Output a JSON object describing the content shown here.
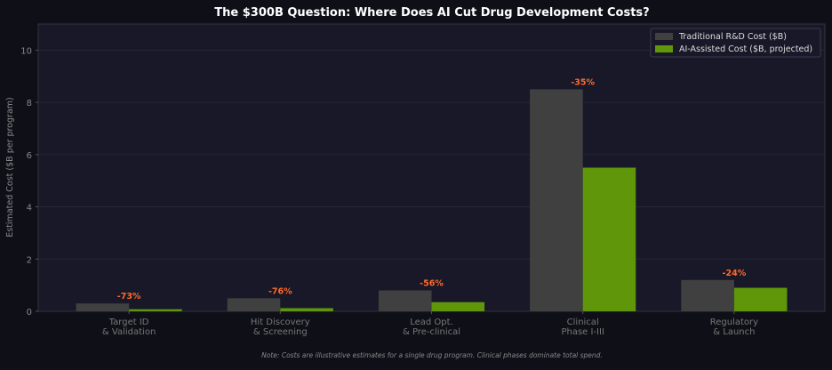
{
  "chart_data": {
    "type": "bar",
    "title": "The $300B Question: Where Does AI Cut Drug Development Costs?",
    "xlabel": "",
    "ylabel": "Estimated Cost ($B per program)",
    "ylim": [
      0,
      11
    ],
    "yticks": [
      0,
      2,
      4,
      6,
      8,
      10
    ],
    "grid": true,
    "legend_position": "top-right",
    "categories": [
      [
        "Target ID",
        "& Validation"
      ],
      [
        "Hit Discovery",
        "& Screening"
      ],
      [
        "Lead Opt.",
        "& Pre-clinical"
      ],
      [
        "Clinical",
        "Phase I-III"
      ],
      [
        "Regulatory",
        "& Launch"
      ]
    ],
    "series": [
      {
        "name": "Traditional R&D Cost ($B)",
        "color": "#404040",
        "values": [
          0.3,
          0.5,
          0.8,
          8.5,
          1.2
        ]
      },
      {
        "name": "AI-Assisted Cost ($B, projected)",
        "color": "#5f960a",
        "values": [
          0.08,
          0.12,
          0.35,
          5.5,
          0.9
        ]
      }
    ],
    "annotations": [
      "-73%",
      "-76%",
      "-56%",
      "-35%",
      "-24%"
    ],
    "annotation_color": "#ff6a2b",
    "note": "Note: Costs are illustrative estimates for a single drug program. Clinical phases dominate total spend."
  }
}
